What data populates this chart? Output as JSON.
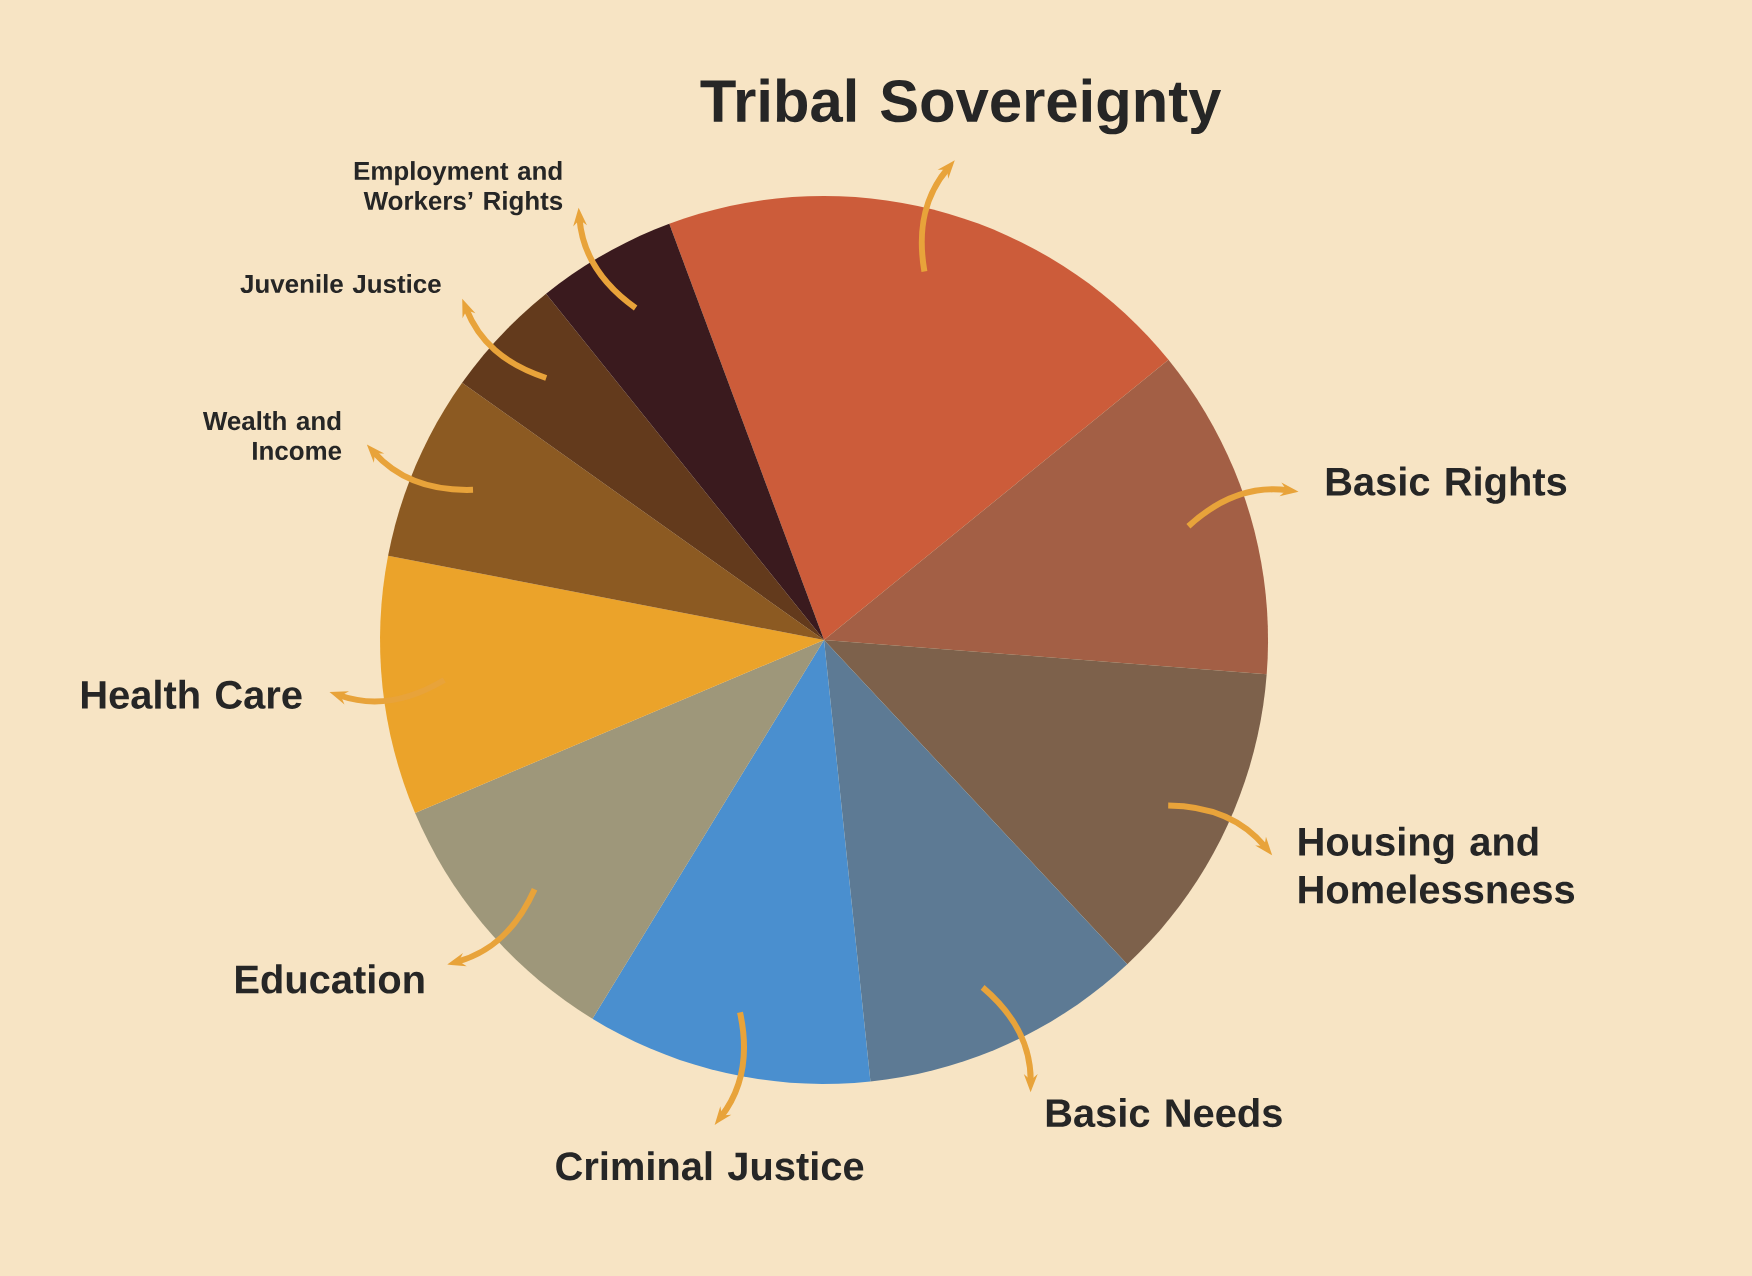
{
  "chart_data": {
    "type": "pie",
    "categories": [
      "Tribal Sovereignty",
      "Basic Rights",
      "Housing and Homelessness",
      "Basic Needs",
      "Criminal Justice",
      "Education",
      "Health Care",
      "Wealth and Income",
      "Juvenile Justice",
      "Employment and Workers’ Rights"
    ],
    "values": [
      19.8,
      12.1,
      11.8,
      10.3,
      10.4,
      9.9,
      9.4,
      6.8,
      4.4,
      5.1
    ],
    "colors": [
      "#cc5c3a",
      "#a35f45",
      "#7d614b",
      "#5d7a94",
      "#4a8fcf",
      "#9e977a",
      "#eba32a",
      "#8c5a22",
      "#633a1c",
      "#3a1a1e"
    ]
  }
}
